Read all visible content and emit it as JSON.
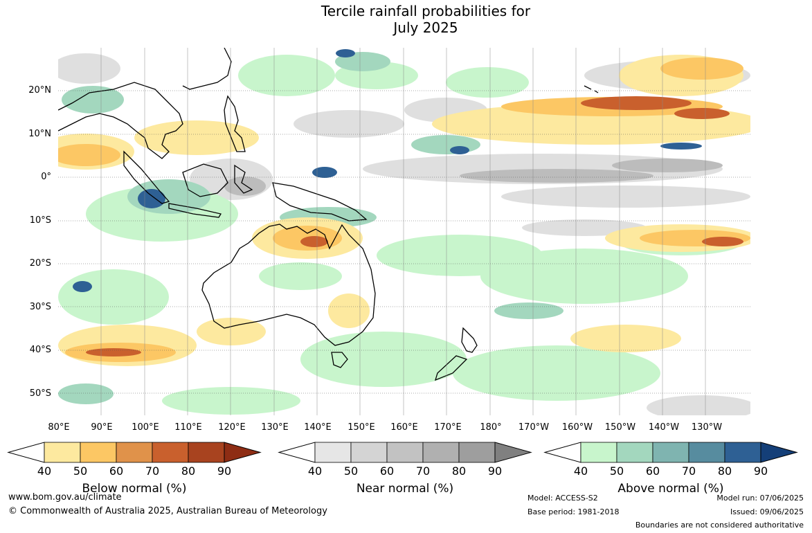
{
  "title_line1": "Tercile rainfall probabilities for",
  "title_line2": "July 2025",
  "lat_labels": [
    "20°N",
    "10°N",
    "0°",
    "10°S",
    "20°S",
    "30°S",
    "40°S",
    "50°S"
  ],
  "lon_labels": [
    "80°E",
    "90°E",
    "100°E",
    "110°E",
    "120°E",
    "130°E",
    "140°E",
    "150°E",
    "160°E",
    "170°E",
    "180°",
    "170°W",
    "160°W",
    "150°W",
    "140°W",
    "130°W"
  ],
  "legends": [
    {
      "title": "Below normal (%)",
      "ticks": [
        "40",
        "50",
        "60",
        "70",
        "80",
        "90"
      ],
      "colors": [
        "#ffffff",
        "#fde99f",
        "#fcc764",
        "#e0924a",
        "#c9602d",
        "#a8431f",
        "#8e2d14"
      ]
    },
    {
      "title": "Near normal (%)",
      "ticks": [
        "40",
        "50",
        "60",
        "70",
        "80",
        "90"
      ],
      "colors": [
        "#ffffff",
        "#e6e6e6",
        "#d4d4d4",
        "#c2c2c2",
        "#b0b0b0",
        "#9e9e9e",
        "#808080"
      ]
    },
    {
      "title": "Above normal (%)",
      "ticks": [
        "40",
        "50",
        "60",
        "70",
        "80",
        "90"
      ],
      "colors": [
        "#ffffff",
        "#c8f5cc",
        "#a3d7be",
        "#7fb4b0",
        "#578c9f",
        "#2e6094",
        "#143f78"
      ]
    }
  ],
  "footer": {
    "website": "www.bom.gov.au/climate",
    "copyright": "© Commonwealth of Australia 2025, Australian Bureau of Meteorology",
    "model": "Model: ACCESS-S2",
    "base_period": "Base period: 1981-2018",
    "model_run": "Model run: 07/06/2025",
    "issued": "Issued: 09/06/2025",
    "boundaries": "Boundaries are not considered authoritative"
  }
}
